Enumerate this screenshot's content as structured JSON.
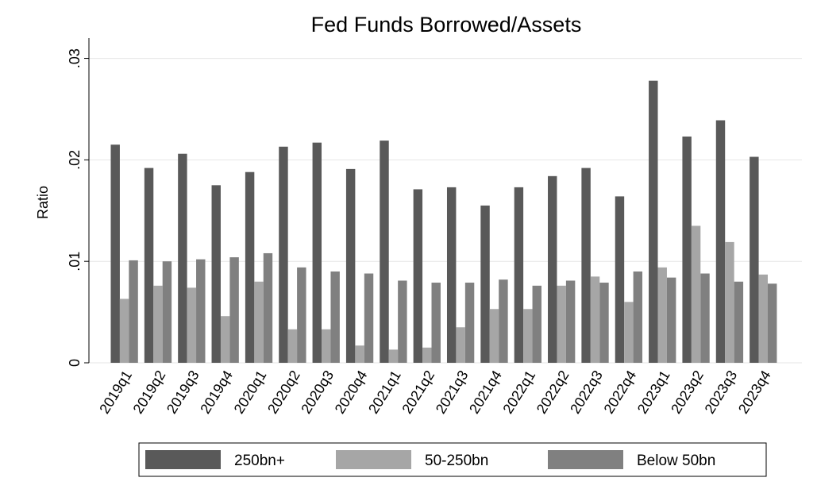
{
  "chart_data": {
    "type": "bar",
    "title": "Fed Funds Borrowed/Assets",
    "y_label": "Ratio",
    "categories": [
      "2019q1",
      "2019q2",
      "2019q3",
      "2019q4",
      "2020q1",
      "2020q2",
      "2020q3",
      "2020q4",
      "2021q1",
      "2021q2",
      "2021q3",
      "2021q4",
      "2022q1",
      "2022q2",
      "2022q3",
      "2022q4",
      "2023q1",
      "2023q2",
      "2023q3",
      "2023q4"
    ],
    "series": [
      {
        "name": "250bn+",
        "color": "#595959",
        "values": [
          0.0215,
          0.0192,
          0.0206,
          0.0175,
          0.0188,
          0.0213,
          0.0217,
          0.0191,
          0.0219,
          0.0171,
          0.0173,
          0.0155,
          0.0173,
          0.0184,
          0.0192,
          0.0164,
          0.0278,
          0.0223,
          0.0239,
          0.0203
        ]
      },
      {
        "name": "50-250bn",
        "color": "#a6a6a6",
        "values": [
          0.0063,
          0.0076,
          0.0074,
          0.0046,
          0.008,
          0.0033,
          0.0033,
          0.0017,
          0.0013,
          0.0015,
          0.0035,
          0.0053,
          0.0053,
          0.0076,
          0.0085,
          0.006,
          0.0094,
          0.0135,
          0.0119,
          0.0087
        ]
      },
      {
        "name": "Below 50bn",
        "color": "#808080",
        "values": [
          0.0101,
          0.01,
          0.0102,
          0.0104,
          0.0108,
          0.0094,
          0.009,
          0.0088,
          0.0081,
          0.0079,
          0.0079,
          0.0082,
          0.0076,
          0.0081,
          0.0079,
          0.009,
          0.0084,
          0.0088,
          0.008,
          0.0078
        ]
      }
    ],
    "ylim": [
      0,
      0.032
    ],
    "yticks": [
      0,
      {
        "value": 0.01,
        "label": ".01"
      },
      {
        "value": 0.02,
        "label": ".02"
      },
      {
        "value": 0.03,
        "label": ".03"
      }
    ],
    "grid": true,
    "legend": "bottom"
  }
}
